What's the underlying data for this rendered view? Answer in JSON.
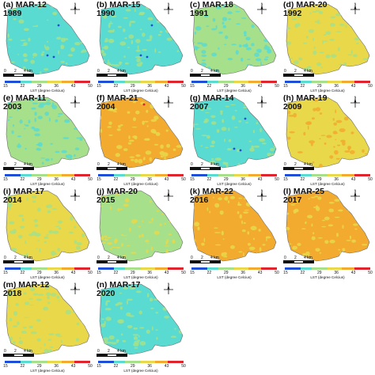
{
  "colors": {
    "blue": "#1f4fd6",
    "cyan": "#59dbd2",
    "lightgreen": "#a6e08a",
    "yellow": "#e8d84a",
    "orange": "#f2ab2e",
    "red": "#e0242d"
  },
  "colorbar": {
    "ticks": [
      "15",
      "22",
      "29",
      "36",
      "43",
      "50"
    ],
    "title": "LST (degree Celcius)"
  },
  "scale": {
    "labels": [
      "0",
      "2",
      "4 km"
    ]
  },
  "compass": {
    "north": "N"
  },
  "panels": [
    {
      "label": "(a) MAR-12\n1989",
      "base": "cyan",
      "patch": "lightgreen"
    },
    {
      "label": "(b) MAR-15\n1990",
      "base": "cyan",
      "patch": "lightgreen"
    },
    {
      "label": "(c) MAR-18\n1991",
      "base": "lightgreen",
      "patch": "cyan"
    },
    {
      "label": "(d) MAR-20\n1992",
      "base": "yellow",
      "patch": "lightgreen"
    },
    {
      "label": "(e) MAR-11\n2003",
      "base": "lightgreen",
      "patch": "cyan"
    },
    {
      "label": "(f) MAR-21\n2004",
      "base": "orange",
      "patch": "yellow"
    },
    {
      "label": "(g) MAR-14\n2007",
      "base": "cyan",
      "patch": "lightgreen"
    },
    {
      "label": "(h) MAR-19\n2009",
      "base": "yellow",
      "patch": "orange"
    },
    {
      "label": "(i) MAR-17\n2014",
      "base": "yellow",
      "patch": "lightgreen"
    },
    {
      "label": "(j) MAR-20\n2015",
      "base": "lightgreen",
      "patch": "yellow"
    },
    {
      "label": "(k) MAR-22\n2016",
      "base": "orange",
      "patch": "yellow"
    },
    {
      "label": "(l) MAR-25\n2017",
      "base": "orange",
      "patch": "yellow"
    },
    {
      "label": "(m) MAR-12\n2018",
      "base": "yellow",
      "patch": "lightgreen"
    },
    {
      "label": "(n) MAR-17\n2020",
      "base": "cyan",
      "patch": "lightgreen"
    }
  ]
}
